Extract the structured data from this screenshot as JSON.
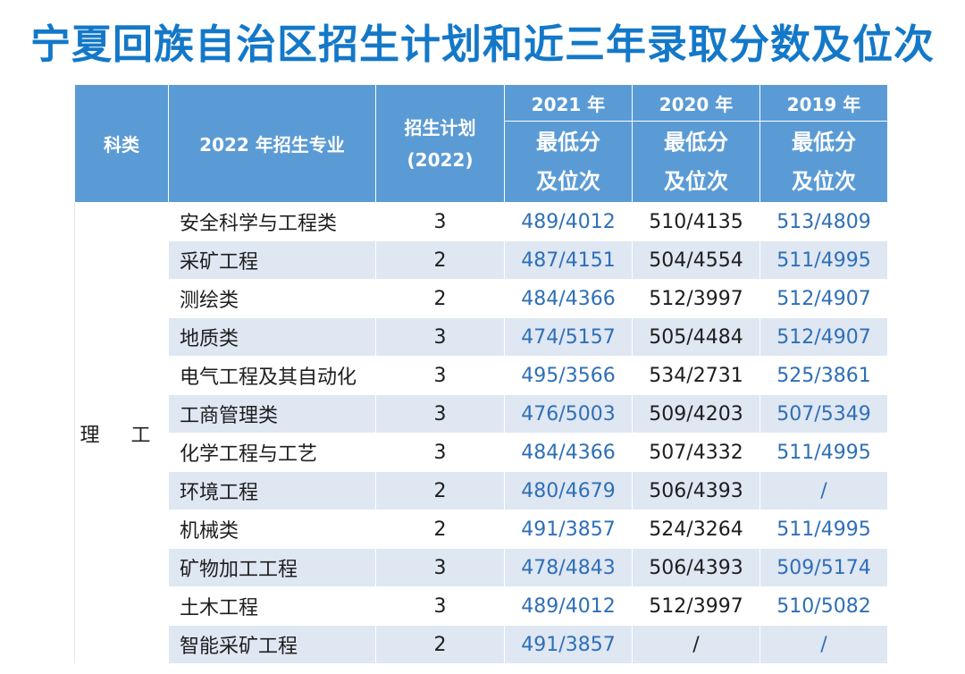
{
  "title": "宁夏回族自治区招生计划和近三年录取分数及位次",
  "header": {
    "category": "科类",
    "major": "2022 年招生专业",
    "plan_line1": "招生计划",
    "plan_line2": "(2022)",
    "year_2021": "2021 年",
    "year_2020": "2020 年",
    "year_2019": "2019 年",
    "sub_line1": "最低分",
    "sub_line2": "及位次"
  },
  "category_value": "理 工",
  "rows": [
    {
      "major": "安全科学与工程类",
      "plan": "3",
      "y2021": "489/4012",
      "y2020": "510/4135",
      "y2019": "513/4809"
    },
    {
      "major": "采矿工程",
      "plan": "2",
      "y2021": "487/4151",
      "y2020": "504/4554",
      "y2019": "511/4995"
    },
    {
      "major": "测绘类",
      "plan": "2",
      "y2021": "484/4366",
      "y2020": "512/3997",
      "y2019": "512/4907"
    },
    {
      "major": "地质类",
      "plan": "3",
      "y2021": "474/5157",
      "y2020": "505/4484",
      "y2019": "512/4907"
    },
    {
      "major": "电气工程及其自动化",
      "plan": "3",
      "y2021": "495/3566",
      "y2020": "534/2731",
      "y2019": "525/3861"
    },
    {
      "major": "工商管理类",
      "plan": "3",
      "y2021": "476/5003",
      "y2020": "509/4203",
      "y2019": "507/5349"
    },
    {
      "major": "化学工程与工艺",
      "plan": "3",
      "y2021": "484/4366",
      "y2020": "507/4332",
      "y2019": "511/4995"
    },
    {
      "major": "环境工程",
      "plan": "2",
      "y2021": "480/4679",
      "y2020": "506/4393",
      "y2019": "/"
    },
    {
      "major": "机械类",
      "plan": "2",
      "y2021": "491/3857",
      "y2020": "524/3264",
      "y2019": "511/4995"
    },
    {
      "major": "矿物加工工程",
      "plan": "3",
      "y2021": "478/4843",
      "y2020": "506/4393",
      "y2019": "509/5174"
    },
    {
      "major": "土木工程",
      "plan": "3",
      "y2021": "489/4012",
      "y2020": "512/3997",
      "y2019": "510/5082"
    },
    {
      "major": "智能采矿工程",
      "plan": "2",
      "y2021": "491/3857",
      "y2020": "/",
      "y2019": "/"
    }
  ]
}
